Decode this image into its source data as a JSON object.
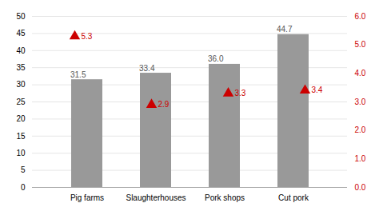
{
  "chart_data": {
    "type": "bar",
    "categories": [
      "Pig farms",
      "Slaughterhouses",
      "Pork shops",
      "Cut pork"
    ],
    "series": [
      {
        "type": "bar",
        "color": "#999999",
        "values": [
          31.5,
          33.4,
          36.0,
          44.7
        ],
        "value_labels": [
          "31.5",
          "33.4",
          "36.0",
          "44.7"
        ]
      },
      {
        "type": "scatter",
        "marker": "triangle",
        "color": "#cc0000",
        "axis": "y2",
        "values": [
          5.3,
          2.9,
          3.3,
          3.4
        ]
      }
    ],
    "ylim": [
      0,
      50
    ],
    "yticks": [
      0,
      5,
      10,
      15,
      20,
      25,
      30,
      35,
      40,
      45,
      50
    ],
    "y2lim": [
      0,
      6
    ],
    "y2ticks": [
      0,
      1,
      2,
      3,
      4,
      5,
      6
    ],
    "grid": true,
    "data_labels": true
  }
}
